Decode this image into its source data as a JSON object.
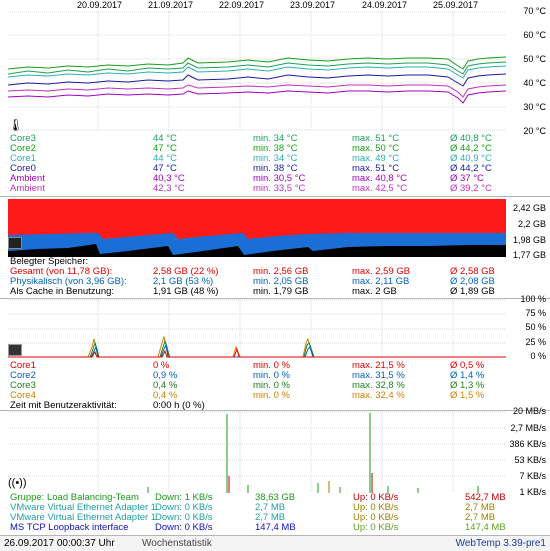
{
  "dates": [
    "20.09.2017",
    "21.09.2017",
    "22.09.2017",
    "23.09.2017",
    "24.09.2017",
    "25.09.2017"
  ],
  "temp": {
    "axis": [
      "70 °C",
      "60 °C",
      "50 °C",
      "40 °C",
      "30 °C",
      "20 °C"
    ],
    "rows": [
      {
        "name": "Core3",
        "cur": "44 °C",
        "min": "min. 34 °C",
        "max": "max. 51 °C",
        "avg": "Ø 40,8 °C",
        "color": "#1aa05a"
      },
      {
        "name": "Core2",
        "cur": "47 °C",
        "min": "min. 38 °C",
        "max": "max. 50 °C",
        "avg": "Ø 44,2 °C",
        "color": "#16a016"
      },
      {
        "name": "Core1",
        "cur": "44 °C",
        "min": "min. 34 °C",
        "max": "max. 49 °C",
        "avg": "Ø 40,9 °C",
        "color": "#2ab0b0"
      },
      {
        "name": "Core0",
        "cur": "47 °C",
        "min": "min. 38 °C",
        "max": "max. 51 °C",
        "avg": "Ø 44,2 °C",
        "color": "#1a1aa0"
      },
      {
        "name": "Ambient",
        "cur": "40,3 °C",
        "min": "min. 30,5 °C",
        "max": "max. 40,8 °C",
        "avg": "Ø 37 °C",
        "color": "#a000c0"
      },
      {
        "name": "Ambient",
        "cur": "42,3 °C",
        "min": "min. 33,5 °C",
        "max": "max. 42,5 °C",
        "avg": "Ø 39,2 °C",
        "color": "#c030c0"
      }
    ]
  },
  "mem": {
    "axis": [
      "2,42 GB",
      "2,2 GB",
      "1,98 GB",
      "1,77 GB"
    ],
    "title": "Belegter Speicher:",
    "rows": [
      {
        "name": "Gesamt (von 11,78 GB):",
        "cur": "2,58 GB (22 %)",
        "min": "min. 2,56 GB",
        "max": "max. 2,59 GB",
        "avg": "Ø 2,58 GB",
        "color": "#e00000"
      },
      {
        "name": "Physikalisch (von 3,96 GB):",
        "cur": "2,1 GB (53 %)",
        "min": "min. 2,05 GB",
        "max": "max. 2,11 GB",
        "avg": "Ø 2,08 GB",
        "color": "#0060c0"
      },
      {
        "name": "Als Cache in Benutzung:",
        "cur": "1,91 GB (48 %)",
        "min": "min. 1,79 GB",
        "max": "max. 2 GB",
        "avg": "Ø 1,89 GB",
        "color": "#000000"
      }
    ]
  },
  "cpu": {
    "axis": [
      "100 %",
      "75 %",
      "50 %",
      "25 %",
      "0 %"
    ],
    "rows": [
      {
        "name": "Core1",
        "cur": "0 %",
        "min": "min. 0 %",
        "max": "max. 21,5 %",
        "avg": "Ø 0,5 %",
        "color": "#e00000"
      },
      {
        "name": "Core2",
        "cur": "0,9 %",
        "min": "min. 0 %",
        "max": "max. 31,5 %",
        "avg": "Ø 1,4 %",
        "color": "#0060c0"
      },
      {
        "name": "Core3",
        "cur": "0,4 %",
        "min": "min. 0 %",
        "max": "max. 32,8 %",
        "avg": "Ø 1,3 %",
        "color": "#208020"
      },
      {
        "name": "Core4",
        "cur": "0,4 %",
        "min": "min. 0 %",
        "max": "max. 32,4 %",
        "avg": "Ø 1,5 %",
        "color": "#d08000"
      }
    ],
    "activity_label": "Zeit mit Benutzeraktivität:",
    "activity_value": "0:00 h (0 %)"
  },
  "net": {
    "axis": [
      "20 MB/s",
      "2,7 MB/s",
      "386 KB/s",
      "53 KB/s",
      "7 KB/s",
      "1 KB/s"
    ],
    "rows": [
      {
        "name": "Gruppe: Load Balancing-Team",
        "down": "Down: 1 KB/s",
        "dtotal": "38,63 GB",
        "up": "Up: 0 KB/s",
        "utotal": "542,7 MB",
        "color": "#1a9a1a",
        "ucolor": "#c00000"
      },
      {
        "name": "VMware Virtual Ethernet Adapter 1",
        "down": "Down: 0 KB/s",
        "dtotal": "2,7 MB",
        "up": "Up: 0 KB/s",
        "utotal": "2,7 MB",
        "color": "#20a0a0",
        "ucolor": "#a08000"
      },
      {
        "name": "VMware Virtual Ethernet Adapter 1",
        "down": "Down: 0 KB/s",
        "dtotal": "2,7 MB",
        "up": "Up: 0 KB/s",
        "utotal": "2,7 MB",
        "color": "#20a0a0",
        "ucolor": "#a08000"
      },
      {
        "name": "MS TCP Loopback interface",
        "down": "Down: 0 KB/s",
        "dtotal": "147,4 MB",
        "up": "Up: 0 KB/s",
        "utotal": "147,4 MB",
        "color": "#1010c0",
        "ucolor": "#60a020"
      }
    ]
  },
  "status": {
    "datetime": "26.09.2017 00:00:37 Uhr",
    "mode": "Wochenstatistik",
    "app": "WebTemp 3.39-pre1"
  }
}
